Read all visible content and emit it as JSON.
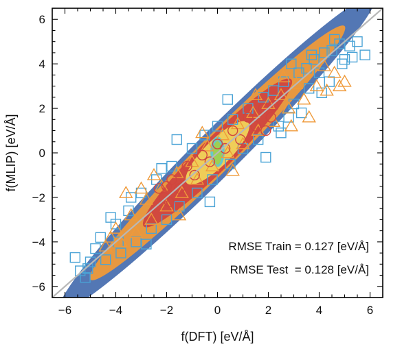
{
  "chart_data": {
    "type": "scatter",
    "title": "",
    "xlabel": "f(DFT) [eV/Å]",
    "ylabel": "f(MLIP) [eV/Å]",
    "xlim": [
      -6.5,
      6.5
    ],
    "ylim": [
      -6.5,
      6.5
    ],
    "xticks": [
      -6,
      -4,
      -2,
      0,
      2,
      4,
      6
    ],
    "yticks": [
      -6,
      -4,
      -2,
      0,
      2,
      4,
      6
    ],
    "xtick_labels": [
      "−6",
      "−4",
      "−2",
      "0",
      "2",
      "4",
      "6"
    ],
    "ytick_labels": [
      "−6",
      "−4",
      "−2",
      "0",
      "2",
      "4",
      "6"
    ],
    "grid": false,
    "reference_line": {
      "from": [
        -6.5,
        -6.5
      ],
      "to": [
        6.5,
        6.5
      ],
      "color": "#b8b8b8"
    },
    "colors": {
      "train_square": "#4aa3d6",
      "train_dense": "#4a70b0",
      "test_triangle": "#ef9a3a",
      "core_red": "#d0453f",
      "core_yellow": "#f0d55a",
      "center_green": "#9fd14e",
      "center_cyan": "#5fc7d0"
    },
    "series": [
      {
        "marker": "square",
        "points": [
          [
            5.2,
            4.8
          ],
          [
            5.5,
            5.0
          ],
          [
            5.8,
            4.4
          ],
          [
            5.0,
            4.2
          ],
          [
            4.8,
            4.9
          ],
          [
            4.5,
            4.6
          ],
          [
            5.3,
            4.3
          ],
          [
            4.9,
            4.0
          ],
          [
            4.6,
            5.1
          ],
          [
            4.2,
            4.5
          ],
          [
            4.0,
            3.6
          ],
          [
            3.8,
            4.2
          ],
          [
            4.4,
            3.2
          ],
          [
            3.5,
            3.8
          ],
          [
            3.6,
            2.9
          ],
          [
            3.2,
            3.6
          ],
          [
            3.0,
            2.2
          ],
          [
            2.6,
            3.2
          ],
          [
            2.8,
            1.6
          ],
          [
            2.2,
            2.8
          ],
          [
            2.4,
            1.2
          ],
          [
            1.8,
            2.5
          ],
          [
            1.6,
            0.6
          ],
          [
            1.2,
            2.0
          ],
          [
            1.0,
            0.2
          ],
          [
            0.6,
            1.5
          ],
          [
            0.5,
            -0.5
          ],
          [
            0.0,
            1.2
          ],
          [
            -0.2,
            -1.2
          ],
          [
            -0.5,
            0.8
          ],
          [
            -0.8,
            -1.8
          ],
          [
            -1.0,
            0.2
          ],
          [
            -1.5,
            -2.4
          ],
          [
            -1.8,
            -0.6
          ],
          [
            -2.0,
            -3.0
          ],
          [
            -2.4,
            -1.2
          ],
          [
            -2.6,
            -3.4
          ],
          [
            -3.0,
            -1.8
          ],
          [
            -3.2,
            -4.0
          ],
          [
            -3.5,
            -2.6
          ],
          [
            -3.8,
            -4.5
          ],
          [
            -4.0,
            -3.2
          ],
          [
            -4.4,
            -4.8
          ],
          [
            -4.6,
            -3.8
          ],
          [
            -5.0,
            -4.9
          ],
          [
            -5.1,
            -5.2
          ],
          [
            -5.4,
            -5.3
          ],
          [
            -5.6,
            -4.7
          ],
          [
            -5.2,
            -5.6
          ],
          [
            -4.8,
            -4.3
          ],
          [
            -2.2,
            -0.7
          ],
          [
            2.5,
            0.9
          ],
          [
            0.4,
            2.4
          ],
          [
            -0.3,
            -2.2
          ],
          [
            3.3,
            1.8
          ],
          [
            -3.4,
            -2.0
          ],
          [
            1.9,
            -0.2
          ],
          [
            -1.6,
            0.6
          ],
          [
            4.1,
            2.7
          ],
          [
            -4.2,
            -2.9
          ],
          [
            2.9,
            4.0
          ],
          [
            -2.8,
            -4.1
          ],
          [
            3.7,
            4.4
          ],
          [
            -3.9,
            -4.0
          ]
        ]
      },
      {
        "marker": "triangle",
        "points": [
          [
            5.0,
            3.2
          ],
          [
            4.6,
            3.6
          ],
          [
            4.3,
            2.8
          ],
          [
            4.8,
            3.0
          ],
          [
            3.9,
            3.0
          ],
          [
            4.2,
            3.9
          ],
          [
            3.4,
            2.4
          ],
          [
            3.1,
            3.1
          ],
          [
            2.8,
            2.0
          ],
          [
            2.5,
            2.6
          ],
          [
            2.2,
            1.4
          ],
          [
            2.0,
            2.2
          ],
          [
            1.6,
            1.0
          ],
          [
            1.4,
            1.8
          ],
          [
            1.0,
            0.4
          ],
          [
            0.8,
            1.3
          ],
          [
            0.4,
            0.0
          ],
          [
            0.2,
            0.8
          ],
          [
            -0.2,
            -0.6
          ],
          [
            -0.4,
            0.3
          ],
          [
            -0.8,
            -1.2
          ],
          [
            -1.0,
            -0.4
          ],
          [
            -1.4,
            -1.8
          ],
          [
            -1.6,
            -0.9
          ],
          [
            -2.0,
            -2.4
          ],
          [
            -2.2,
            -1.5
          ],
          [
            -2.6,
            -3.0
          ],
          [
            -2.8,
            -2.1
          ],
          [
            -3.2,
            -3.6
          ],
          [
            -3.4,
            -2.8
          ],
          [
            -3.8,
            -4.0
          ],
          [
            -4.0,
            -3.4
          ],
          [
            -4.4,
            -4.2
          ],
          [
            -4.2,
            -3.8
          ],
          [
            -3.0,
            -1.6
          ],
          [
            2.6,
            3.4
          ],
          [
            -1.5,
            -2.8
          ],
          [
            1.5,
            2.6
          ],
          [
            3.6,
            1.6
          ],
          [
            -3.6,
            -1.8
          ],
          [
            0.6,
            -0.8
          ],
          [
            -0.6,
            0.9
          ],
          [
            2.9,
            1.2
          ],
          [
            -2.5,
            -1.0
          ]
        ]
      },
      {
        "marker": "circle",
        "points": [
          [
            2.1,
            1.6
          ],
          [
            1.8,
            2.0
          ],
          [
            1.5,
            1.2
          ],
          [
            1.2,
            1.6
          ],
          [
            0.9,
            0.6
          ],
          [
            0.6,
            1.0
          ],
          [
            0.3,
            0.2
          ],
          [
            0.0,
            0.4
          ],
          [
            -0.3,
            -0.4
          ],
          [
            -0.6,
            -0.1
          ],
          [
            -0.9,
            -1.0
          ],
          [
            -1.2,
            -0.6
          ],
          [
            -1.5,
            -1.6
          ],
          [
            -1.8,
            -1.2
          ],
          [
            -2.1,
            -2.0
          ],
          [
            -2.3,
            -1.6
          ],
          [
            1.9,
            1.0
          ],
          [
            -1.9,
            -2.2
          ],
          [
            2.2,
            2.1
          ],
          [
            -2.0,
            -1.5
          ]
        ]
      }
    ],
    "dense_regions": [
      {
        "name_hint": "blue band",
        "color": "#4a70b0",
        "center": [
          0,
          0
        ],
        "half_length": 6.2,
        "half_width": 0.62
      },
      {
        "name_hint": "orange band",
        "color": "#ef9a3a",
        "center": [
          0,
          0
        ],
        "half_length": 5.0,
        "half_width": 0.5
      },
      {
        "name_hint": "red core",
        "color": "#d0453f",
        "center": [
          0,
          0
        ],
        "half_length": 2.9,
        "half_width": 0.45
      },
      {
        "name_hint": "yellow center",
        "color": "#f0d55a",
        "center": [
          0,
          0
        ],
        "half_length": 1.2,
        "half_width": 0.36
      },
      {
        "name_hint": "cyan center",
        "color": "#5fc7d0",
        "center": [
          0,
          0.05
        ],
        "rx": 0.28,
        "ry": 0.6
      },
      {
        "name_hint": "green center",
        "color": "#9fd14e",
        "center": [
          0,
          0.0
        ],
        "rx": 0.17,
        "ry": 0.46
      }
    ],
    "annotations": [
      {
        "text": "RMSE Train = 0.127 [eV/Å]"
      },
      {
        "text": "RMSE Test  = 0.128 [eV/Å]"
      }
    ]
  }
}
